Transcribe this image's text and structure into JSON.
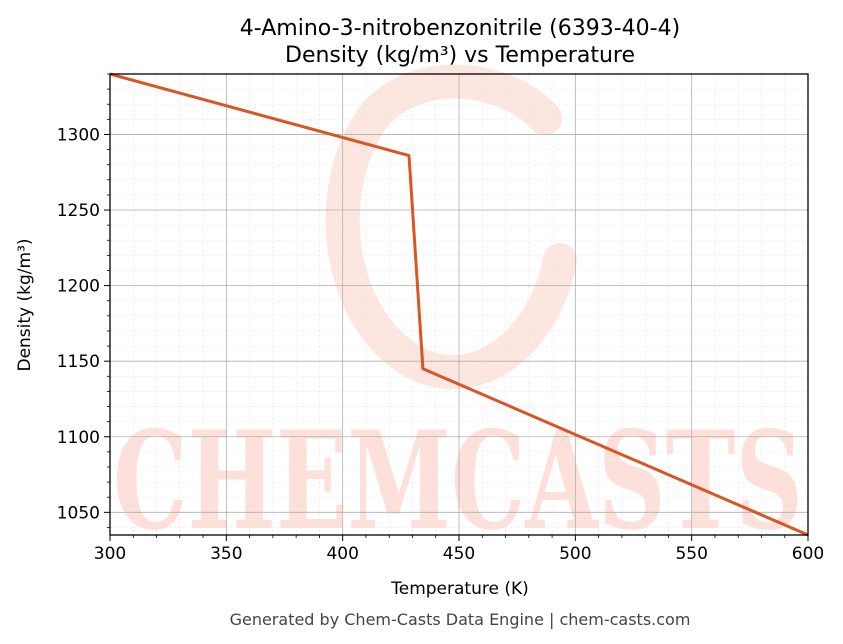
{
  "chart_data": {
    "type": "line",
    "title": "4-Amino-3-nitrobenzonitrile (6393-40-4)",
    "subtitle": "Density (kg/m³) vs Temperature",
    "xlabel": "Temperature (K)",
    "ylabel": "Density (kg/m³)",
    "xlim": [
      300,
      600
    ],
    "ylim": [
      1035,
      1340
    ],
    "xticks": [
      300,
      350,
      400,
      450,
      500,
      550,
      600
    ],
    "yticks": [
      1050,
      1100,
      1150,
      1200,
      1250,
      1300
    ],
    "grid": true,
    "series": [
      {
        "color": "#d95525",
        "x": [
          300,
          428.5,
          434.5,
          600
        ],
        "y": [
          1340,
          1286,
          1145,
          1035
        ]
      }
    ]
  },
  "watermark": {
    "text": "CHEMCASTS",
    "color": "#fde0da"
  },
  "footer": "Generated by Chem-Casts Data Engine | chem-casts.com"
}
